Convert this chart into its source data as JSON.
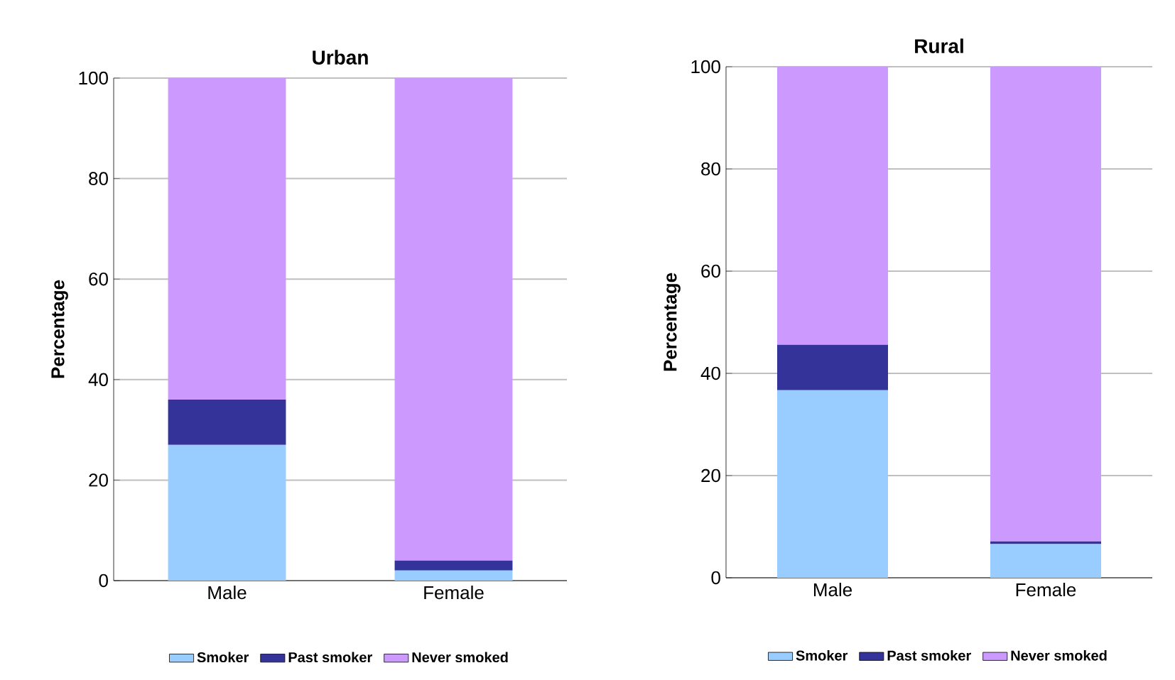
{
  "chart_data": [
    {
      "type": "bar",
      "title": "Urban",
      "ylabel": "Percentage",
      "stacked": true,
      "categories": [
        "Male",
        "Female"
      ],
      "series": [
        {
          "name": "Smoker",
          "color": "#99ccff",
          "values": [
            27,
            2
          ]
        },
        {
          "name": "Past smoker",
          "color": "#333399",
          "values": [
            9,
            2
          ]
        },
        {
          "name": "Never smoked",
          "color": "#cc99ff",
          "values": [
            64,
            96
          ]
        }
      ],
      "ylim": [
        0,
        100
      ],
      "yticks": [
        0,
        20,
        40,
        60,
        80,
        100
      ],
      "grid": "y",
      "legend": "bottom"
    },
    {
      "type": "bar",
      "title": "Rural",
      "ylabel": "Percentage",
      "stacked": true,
      "categories": [
        "Male",
        "Female"
      ],
      "series": [
        {
          "name": "Smoker",
          "color": "#99ccff",
          "values": [
            36.7,
            6.6
          ]
        },
        {
          "name": "Past smoker",
          "color": "#333399",
          "values": [
            8.9,
            0.5
          ]
        },
        {
          "name": "Never smoked",
          "color": "#cc99ff",
          "values": [
            54.4,
            92.9
          ]
        }
      ],
      "ylim": [
        0,
        100
      ],
      "yticks": [
        0,
        20,
        40,
        60,
        80,
        100
      ],
      "grid": "y",
      "legend": "bottom"
    }
  ]
}
